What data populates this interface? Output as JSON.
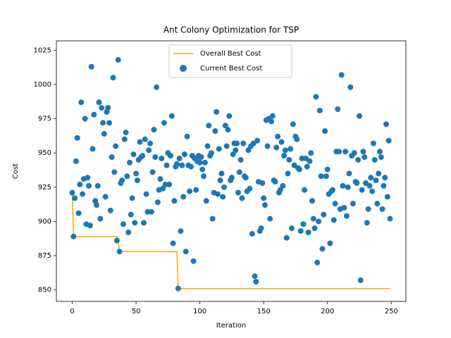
{
  "chart_data": {
    "type": "line",
    "title": "Ant Colony Optimization for TSP",
    "xlabel": "Iteration",
    "ylabel": "Cost",
    "xlim": [
      -12.45,
      261.45
    ],
    "ylim": [
      841.6,
      1031.9
    ],
    "xticks": [
      0,
      50,
      100,
      150,
      200,
      250
    ],
    "yticks": [
      850,
      875,
      900,
      925,
      950,
      975,
      1000,
      1025
    ],
    "legend": "upper center",
    "series": [
      {
        "name": "Overall Best Cost",
        "type": "line",
        "color": "#ffa500",
        "x": [
          0,
          1,
          35,
          36,
          37,
          82,
          83,
          249
        ],
        "values": [
          921,
          889,
          889,
          886,
          878,
          878,
          851,
          851
        ]
      },
      {
        "name": "Current Best Cost",
        "type": "scatter",
        "color": "#1f77b4",
        "x": [
          0,
          1,
          2,
          3,
          4,
          5,
          6,
          7,
          8,
          9,
          10,
          11,
          12,
          13,
          14,
          15,
          16,
          17,
          18,
          19,
          20,
          21,
          22,
          23,
          24,
          25,
          26,
          27,
          28,
          29,
          30,
          31,
          32,
          33,
          34,
          35,
          36,
          37,
          38,
          39,
          40,
          41,
          42,
          43,
          44,
          45,
          46,
          47,
          48,
          49,
          50,
          51,
          52,
          53,
          54,
          55,
          56,
          57,
          58,
          59,
          60,
          61,
          62,
          63,
          64,
          65,
          66,
          67,
          68,
          69,
          70,
          71,
          72,
          73,
          74,
          75,
          76,
          77,
          78,
          79,
          80,
          81,
          82,
          83,
          84,
          85,
          86,
          87,
          88,
          89,
          90,
          91,
          92,
          93,
          94,
          95,
          96,
          97,
          98,
          99,
          100,
          101,
          102,
          103,
          104,
          105,
          106,
          107,
          108,
          109,
          110,
          111,
          112,
          113,
          114,
          115,
          116,
          117,
          118,
          119,
          120,
          121,
          122,
          123,
          124,
          125,
          126,
          127,
          128,
          129,
          130,
          131,
          132,
          133,
          134,
          135,
          136,
          137,
          138,
          139,
          140,
          141,
          142,
          143,
          144,
          145,
          146,
          147,
          148,
          149,
          150,
          151,
          152,
          153,
          154,
          155,
          156,
          157,
          158,
          159,
          160,
          161,
          162,
          163,
          164,
          165,
          166,
          167,
          168,
          169,
          170,
          171,
          172,
          173,
          174,
          175,
          176,
          177,
          178,
          179,
          180,
          181,
          182,
          183,
          184,
          185,
          186,
          187,
          188,
          189,
          190,
          191,
          192,
          193,
          194,
          195,
          196,
          197,
          198,
          199,
          200,
          201,
          202,
          203,
          204,
          205,
          206,
          207,
          208,
          209,
          210,
          211,
          212,
          213,
          214,
          215,
          216,
          217,
          218,
          219,
          220,
          221,
          222,
          223,
          224,
          225,
          226,
          227,
          228,
          229,
          230,
          231,
          232,
          233,
          234,
          235,
          236,
          237,
          238,
          239,
          240,
          241,
          242,
          243,
          244,
          245,
          246,
          247,
          248,
          249
        ],
        "values": [
          921,
          889,
          917,
          944,
          961,
          906,
          927,
          987,
          920,
          931,
          975,
          898,
          932,
          926,
          897,
          1013,
          953,
          978,
          915,
          912,
          926,
          987,
          902,
          983,
          972,
          964,
          918,
          980,
          983,
          972,
          908,
          947,
          1005,
          936,
          955,
          886,
          1018,
          878,
          928,
          930,
          898,
          960,
          965,
          933,
          892,
          943,
          905,
          917,
          949,
          899,
          935,
          930,
          945,
          958,
          947,
          948,
          899,
          960,
          920,
          907,
          952,
          957,
          907,
          936,
          967,
          947,
          998,
          914,
          923,
          931,
          946,
          924,
          972,
          927,
          941,
          950,
          927,
          948,
          977,
          884,
          915,
          940,
          942,
          851,
          946,
          893,
          941,
          918,
          949,
          878,
          962,
          941,
          922,
          940,
          948,
          871,
          946,
          923,
          944,
          948,
          943,
          947,
          938,
          933,
          943,
          915,
          955,
          970,
          948,
          950,
          902,
          921,
          966,
          980,
          920,
          953,
          930,
          935,
          918,
          925,
          970,
          955,
          967,
          977,
          930,
          932,
          949,
          957,
          952,
          957,
          921,
          936,
          945,
          917,
          957,
          933,
          932,
          922,
          952,
          924,
          955,
          891,
          957,
          860,
          856,
          959,
          929,
          893,
          895,
          928,
          917,
          912,
          974,
          955,
          975,
          902,
          973,
          977,
          930,
          929,
          954,
          962,
          921,
          923,
          958,
          926,
          948,
          952,
          888,
          935,
          945,
          953,
          895,
          971,
          941,
          962,
          960,
          939,
          938,
          893,
          946,
          898,
          923,
          946,
          940,
          892,
          944,
          950,
          915,
          902,
          895,
          991,
          870,
          900,
          981,
          933,
          880,
          905,
          966,
          933,
          938,
          920,
          884,
          922,
          923,
          901,
          913,
          951,
          982,
          951,
          909,
          1007,
          926,
          910,
          951,
          904,
          925,
          935,
          998,
          948,
          913,
          950,
          929,
          928,
          945,
          977,
          857,
          923,
          951,
          947,
          928,
          899,
          909,
          926,
          932,
          922,
          957,
          945,
          930,
          913,
          935,
          951,
          947,
          909,
          926,
          932,
          971,
          918,
          959,
          902
        ]
      }
    ]
  }
}
